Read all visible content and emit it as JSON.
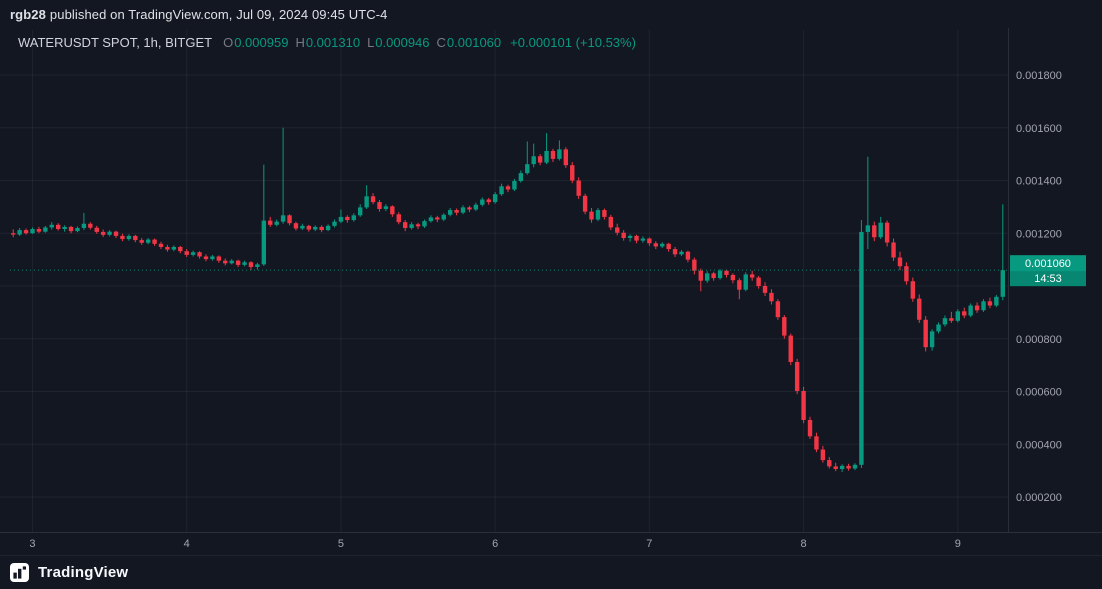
{
  "attribution": {
    "user": "rgb28",
    "text": "published on TradingView.com, Jul 09, 2024 09:45 UTC-4"
  },
  "symbol_info": {
    "title": "WATERUSDT SPOT, 1h, BITGET",
    "ohlc": [
      {
        "label": "O",
        "value": "0.000959"
      },
      {
        "label": "H",
        "value": "0.001310"
      },
      {
        "label": "L",
        "value": "0.000946"
      },
      {
        "label": "C",
        "value": "0.001060"
      }
    ],
    "change": "+0.000101 (+10.53%)"
  },
  "price_tag": {
    "price": "0.001060",
    "countdown": "14:53"
  },
  "footer": {
    "brand": "TradingView"
  },
  "colors": {
    "background": "#131722",
    "up": "#089981",
    "down": "#f23645",
    "grid": "rgba(240,243,250,0.06)",
    "axis_text": "#a3a6af",
    "text": "#d1d4dc",
    "muted": "#787b86",
    "tag": "#089981",
    "border": "#2a2e39"
  },
  "chart_data": {
    "type": "candlestick",
    "title": "WATERUSDT SPOT, 1h, BITGET",
    "symbol": "WATERUSDT",
    "market": "SPOT",
    "interval": "1h",
    "exchange": "BITGET",
    "price_unit": 1e-06,
    "last_price_micro": 1060,
    "y_axis": {
      "min_micro": 200,
      "max_micro": 1800,
      "tick_labels": [
        "0.001800",
        "0.001600",
        "0.001400",
        "0.001200",
        "0.000800",
        "0.000600",
        "0.000400",
        "0.000200"
      ]
    },
    "x_axis": {
      "day_labels": [
        "3",
        "4",
        "5",
        "6",
        "7",
        "8",
        "9"
      ],
      "candles_per_day": 24,
      "first_tick_offset": 3
    },
    "candles_ohlc_micro": [
      [
        1200,
        1215,
        1185,
        1195
      ],
      [
        1195,
        1220,
        1190,
        1212
      ],
      [
        1212,
        1218,
        1195,
        1200
      ],
      [
        1200,
        1222,
        1198,
        1216
      ],
      [
        1216,
        1224,
        1200,
        1206
      ],
      [
        1206,
        1228,
        1202,
        1222
      ],
      [
        1222,
        1242,
        1214,
        1232
      ],
      [
        1232,
        1238,
        1210,
        1216
      ],
      [
        1216,
        1230,
        1206,
        1224
      ],
      [
        1224,
        1228,
        1200,
        1208
      ],
      [
        1208,
        1226,
        1204,
        1220
      ],
      [
        1220,
        1277,
        1212,
        1236
      ],
      [
        1236,
        1242,
        1214,
        1221
      ],
      [
        1221,
        1228,
        1198,
        1205
      ],
      [
        1205,
        1214,
        1186,
        1194
      ],
      [
        1194,
        1212,
        1188,
        1206
      ],
      [
        1206,
        1210,
        1182,
        1190
      ],
      [
        1190,
        1198,
        1170,
        1178
      ],
      [
        1178,
        1196,
        1172,
        1190
      ],
      [
        1190,
        1194,
        1166,
        1174
      ],
      [
        1174,
        1182,
        1156,
        1164
      ],
      [
        1164,
        1182,
        1158,
        1176
      ],
      [
        1176,
        1180,
        1152,
        1160
      ],
      [
        1160,
        1168,
        1140,
        1148
      ],
      [
        1148,
        1156,
        1130,
        1138
      ],
      [
        1138,
        1154,
        1132,
        1148
      ],
      [
        1148,
        1152,
        1124,
        1132
      ],
      [
        1132,
        1140,
        1110,
        1118
      ],
      [
        1118,
        1134,
        1112,
        1128
      ],
      [
        1128,
        1132,
        1104,
        1112
      ],
      [
        1112,
        1120,
        1094,
        1102
      ],
      [
        1102,
        1118,
        1096,
        1112
      ],
      [
        1112,
        1116,
        1088,
        1096
      ],
      [
        1096,
        1104,
        1078,
        1086
      ],
      [
        1086,
        1102,
        1082,
        1096
      ],
      [
        1096,
        1100,
        1072,
        1080
      ],
      [
        1080,
        1096,
        1074,
        1090
      ],
      [
        1090,
        1094,
        1060,
        1072
      ],
      [
        1072,
        1088,
        1062,
        1082
      ],
      [
        1082,
        1460,
        1076,
        1248
      ],
      [
        1248,
        1262,
        1224,
        1232
      ],
      [
        1232,
        1252,
        1226,
        1244
      ],
      [
        1244,
        1600,
        1236,
        1268
      ],
      [
        1268,
        1272,
        1230,
        1238
      ],
      [
        1238,
        1244,
        1210,
        1218
      ],
      [
        1218,
        1236,
        1212,
        1228
      ],
      [
        1228,
        1232,
        1206,
        1214
      ],
      [
        1214,
        1230,
        1208,
        1224
      ],
      [
        1224,
        1230,
        1204,
        1212
      ],
      [
        1212,
        1234,
        1208,
        1228
      ],
      [
        1228,
        1252,
        1222,
        1244
      ],
      [
        1244,
        1290,
        1238,
        1262
      ],
      [
        1262,
        1268,
        1240,
        1250
      ],
      [
        1250,
        1276,
        1244,
        1268
      ],
      [
        1268,
        1310,
        1262,
        1298
      ],
      [
        1298,
        1382,
        1292,
        1340
      ],
      [
        1340,
        1352,
        1310,
        1318
      ],
      [
        1318,
        1326,
        1282,
        1292
      ],
      [
        1292,
        1310,
        1284,
        1302
      ],
      [
        1302,
        1306,
        1262,
        1272
      ],
      [
        1272,
        1280,
        1234,
        1242
      ],
      [
        1242,
        1250,
        1208,
        1220
      ],
      [
        1220,
        1242,
        1214,
        1234
      ],
      [
        1234,
        1240,
        1216,
        1226
      ],
      [
        1226,
        1252,
        1220,
        1246
      ],
      [
        1246,
        1268,
        1240,
        1260
      ],
      [
        1260,
        1266,
        1242,
        1252
      ],
      [
        1252,
        1276,
        1246,
        1270
      ],
      [
        1270,
        1296,
        1264,
        1288
      ],
      [
        1288,
        1294,
        1268,
        1278
      ],
      [
        1278,
        1306,
        1272,
        1298
      ],
      [
        1298,
        1304,
        1280,
        1290
      ],
      [
        1290,
        1316,
        1284,
        1308
      ],
      [
        1308,
        1336,
        1302,
        1328
      ],
      [
        1328,
        1334,
        1308,
        1318
      ],
      [
        1318,
        1356,
        1312,
        1348
      ],
      [
        1348,
        1388,
        1342,
        1378
      ],
      [
        1378,
        1384,
        1356,
        1366
      ],
      [
        1366,
        1406,
        1360,
        1398
      ],
      [
        1398,
        1438,
        1392,
        1428
      ],
      [
        1428,
        1548,
        1422,
        1462
      ],
      [
        1462,
        1540,
        1450,
        1492
      ],
      [
        1492,
        1500,
        1458,
        1468
      ],
      [
        1468,
        1580,
        1462,
        1512
      ],
      [
        1512,
        1520,
        1470,
        1482
      ],
      [
        1482,
        1552,
        1476,
        1518
      ],
      [
        1518,
        1526,
        1448,
        1458
      ],
      [
        1458,
        1470,
        1390,
        1400
      ],
      [
        1400,
        1412,
        1330,
        1342
      ],
      [
        1342,
        1350,
        1272,
        1282
      ],
      [
        1282,
        1296,
        1240,
        1252
      ],
      [
        1252,
        1296,
        1246,
        1288
      ],
      [
        1288,
        1294,
        1252,
        1262
      ],
      [
        1262,
        1270,
        1212,
        1222
      ],
      [
        1222,
        1236,
        1192,
        1202
      ],
      [
        1202,
        1212,
        1172,
        1182
      ],
      [
        1182,
        1196,
        1168,
        1190
      ],
      [
        1190,
        1194,
        1162,
        1172
      ],
      [
        1172,
        1188,
        1164,
        1180
      ],
      [
        1180,
        1184,
        1152,
        1162
      ],
      [
        1162,
        1170,
        1140,
        1150
      ],
      [
        1150,
        1166,
        1144,
        1160
      ],
      [
        1160,
        1164,
        1130,
        1140
      ],
      [
        1140,
        1148,
        1110,
        1120
      ],
      [
        1120,
        1136,
        1114,
        1130
      ],
      [
        1130,
        1134,
        1090,
        1100
      ],
      [
        1100,
        1108,
        1044,
        1058
      ],
      [
        1058,
        1066,
        980,
        1020
      ],
      [
        1020,
        1056,
        1012,
        1048
      ],
      [
        1048,
        1054,
        1020,
        1030
      ],
      [
        1030,
        1064,
        1024,
        1058
      ],
      [
        1058,
        1062,
        1032,
        1042
      ],
      [
        1042,
        1048,
        1010,
        1022
      ],
      [
        1022,
        1030,
        950,
        986
      ],
      [
        986,
        1052,
        980,
        1044
      ],
      [
        1044,
        1058,
        1020,
        1032
      ],
      [
        1032,
        1038,
        990,
        1000
      ],
      [
        1000,
        1014,
        962,
        974
      ],
      [
        974,
        988,
        930,
        942
      ],
      [
        942,
        950,
        872,
        882
      ],
      [
        882,
        890,
        800,
        812
      ],
      [
        812,
        820,
        700,
        712
      ],
      [
        712,
        724,
        590,
        602
      ],
      [
        602,
        618,
        480,
        492
      ],
      [
        492,
        504,
        420,
        430
      ],
      [
        430,
        444,
        370,
        380
      ],
      [
        380,
        394,
        330,
        340
      ],
      [
        340,
        352,
        308,
        316
      ],
      [
        316,
        330,
        298,
        306
      ],
      [
        306,
        324,
        295,
        318
      ],
      [
        318,
        326,
        300,
        308
      ],
      [
        308,
        328,
        302,
        322
      ],
      [
        322,
        1250,
        310,
        1205
      ],
      [
        1205,
        1490,
        1140,
        1230
      ],
      [
        1230,
        1244,
        1170,
        1185
      ],
      [
        1185,
        1262,
        1178,
        1240
      ],
      [
        1240,
        1248,
        1150,
        1165
      ],
      [
        1165,
        1180,
        1095,
        1108
      ],
      [
        1108,
        1130,
        1060,
        1075
      ],
      [
        1075,
        1090,
        1005,
        1018
      ],
      [
        1018,
        1032,
        940,
        952
      ],
      [
        952,
        968,
        860,
        872
      ],
      [
        872,
        886,
        752,
        768
      ],
      [
        768,
        836,
        755,
        828
      ],
      [
        828,
        862,
        820,
        854
      ],
      [
        854,
        888,
        846,
        878
      ],
      [
        878,
        902,
        860,
        868
      ],
      [
        868,
        912,
        862,
        904
      ],
      [
        904,
        918,
        878,
        888
      ],
      [
        888,
        934,
        882,
        926
      ],
      [
        926,
        938,
        898,
        908
      ],
      [
        908,
        950,
        902,
        942
      ],
      [
        942,
        956,
        916,
        926
      ],
      [
        926,
        966,
        920,
        959
      ],
      [
        959,
        1310,
        946,
        1060
      ]
    ]
  }
}
